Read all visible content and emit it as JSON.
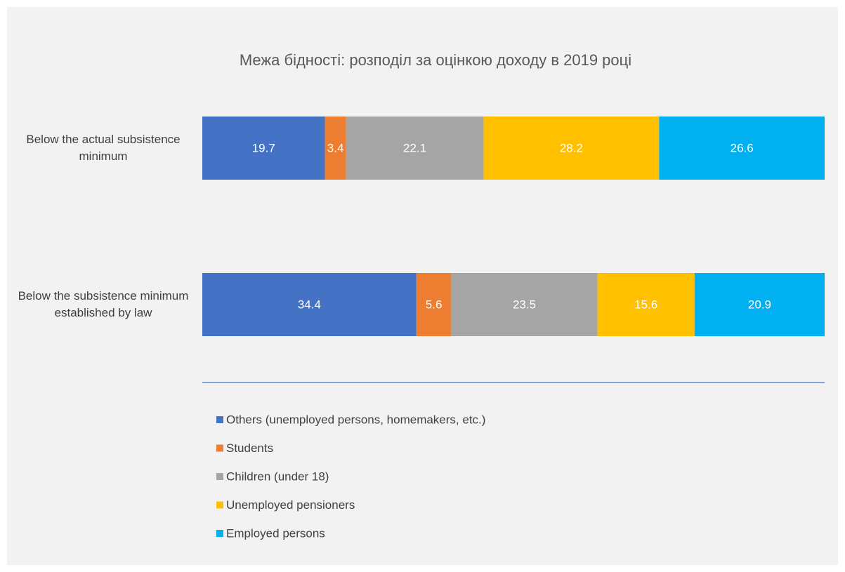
{
  "chart_data": {
    "type": "stacked_bar_horizontal",
    "title": "Межа бідності: розподіл за оцінкою доходу в 2019 році",
    "categories": [
      "Below the actual subsistence minimum",
      "Below the subsistence minimum established by law"
    ],
    "series": [
      {
        "name": "Others (unemployed persons, homemakers, etc.)",
        "color": "#4472c4",
        "values": [
          19.7,
          34.4
        ]
      },
      {
        "name": "Students",
        "color": "#ed7d31",
        "values": [
          3.4,
          5.6
        ]
      },
      {
        "name": "Children (under 18)",
        "color": "#a5a5a5",
        "values": [
          22.1,
          23.5
        ]
      },
      {
        "name": "Unemployed pensioners",
        "color": "#ffc000",
        "values": [
          28.2,
          15.6
        ]
      },
      {
        "name": "Employed persons",
        "color": "#00b0f0",
        "values": [
          26.6,
          20.9
        ]
      }
    ],
    "xlim": [
      0,
      100
    ],
    "legend": "bottom"
  }
}
